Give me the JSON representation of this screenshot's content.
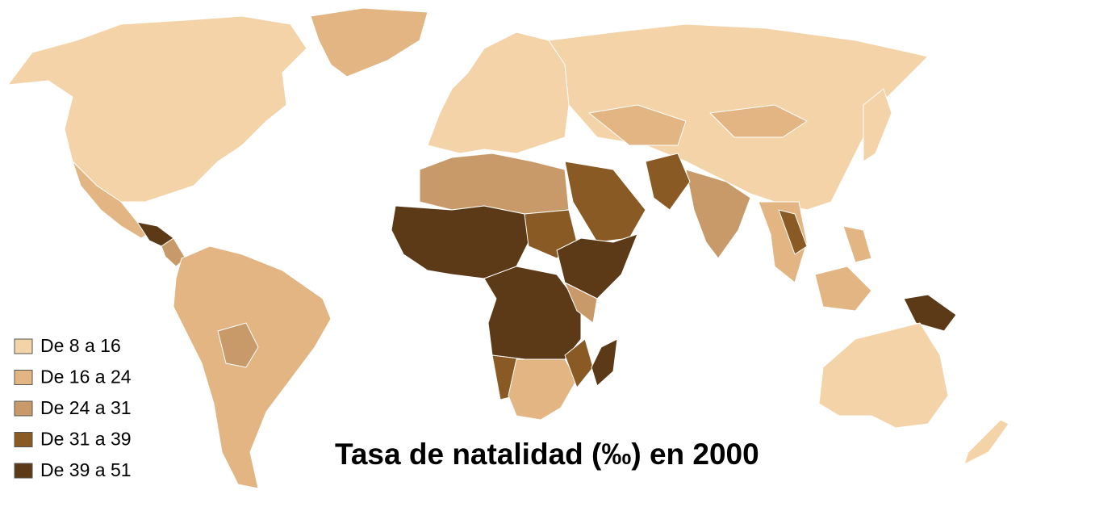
{
  "title": "Tasa de natalidad (‰) en 2000",
  "legend": [
    {
      "label": "De 8 a 16",
      "color": "#f3d3a7"
    },
    {
      "label": "De 16 a 24",
      "color": "#e2b583"
    },
    {
      "label": "De 24 a 31",
      "color": "#c99a69"
    },
    {
      "label": "De 31 a 39",
      "color": "#8a5a24"
    },
    {
      "label": "De 39 a 51",
      "color": "#5c3a17"
    }
  ]
}
